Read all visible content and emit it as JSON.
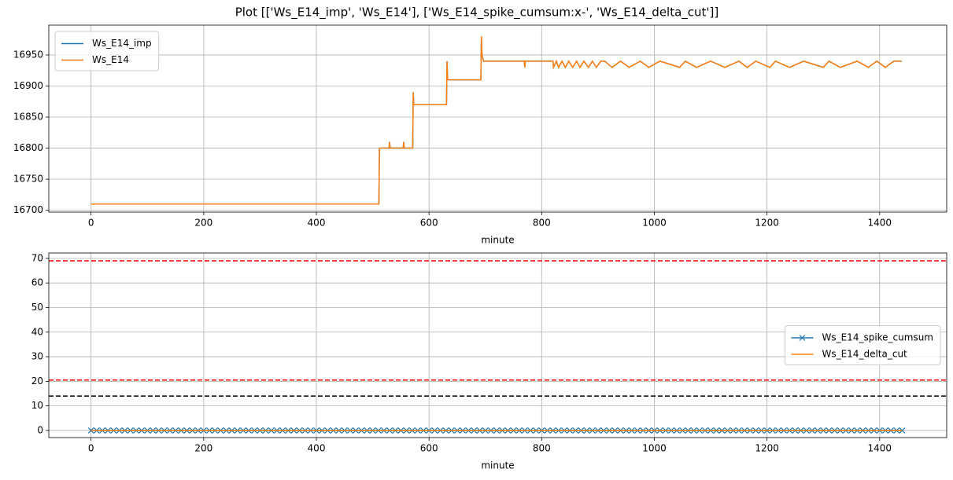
{
  "title": "Plot [['Ws_E14_imp', 'Ws_E14'], ['Ws_E14_spike_cumsum:x-', 'Ws_E14_delta_cut']]",
  "chart_data": [
    {
      "type": "line",
      "xlabel": "minute",
      "grid": true,
      "legend": "upper left",
      "xlim": [
        -75,
        1519
      ],
      "xticks": [
        0,
        200,
        400,
        600,
        800,
        1000,
        1200,
        1400
      ],
      "ylim": [
        16697,
        16998
      ],
      "yticks": [
        16700,
        16750,
        16800,
        16850,
        16900,
        16950
      ],
      "x": [
        0,
        511,
        512,
        529,
        530,
        531,
        554,
        555,
        556,
        571,
        572,
        573,
        631,
        632,
        633,
        692,
        693,
        694,
        697,
        769,
        770,
        771,
        820,
        821,
        826,
        830,
        836,
        842,
        848,
        855,
        862,
        868,
        875,
        883,
        890,
        897,
        905,
        912,
        925,
        940,
        955,
        975,
        990,
        1010,
        1045,
        1055,
        1075,
        1100,
        1125,
        1150,
        1165,
        1180,
        1205,
        1215,
        1240,
        1265,
        1300,
        1310,
        1330,
        1360,
        1380,
        1395,
        1410,
        1425,
        1439
      ],
      "series": [
        {
          "name": "Ws_E14_imp",
          "color": "#1f77b4",
          "values": [
            16710,
            16710,
            16800,
            16800,
            16810,
            16800,
            16800,
            16810,
            16800,
            16800,
            16890,
            16870,
            16870,
            16940,
            16910,
            16910,
            16980,
            16950,
            16940,
            16940,
            16930,
            16940,
            16940,
            16930,
            16940,
            16930,
            16940,
            16930,
            16940,
            16930,
            16940,
            16930,
            16940,
            16930,
            16940,
            16930,
            16940,
            16940,
            16930,
            16940,
            16930,
            16940,
            16930,
            16940,
            16930,
            16940,
            16930,
            16940,
            16930,
            16940,
            16930,
            16940,
            16930,
            16940,
            16930,
            16940,
            16930,
            16940,
            16930,
            16940,
            16930,
            16940,
            16930,
            16940,
            16940
          ]
        },
        {
          "name": "Ws_E14",
          "color": "#ff7f0e",
          "values": [
            16710,
            16710,
            16800,
            16800,
            16810,
            16800,
            16800,
            16810,
            16800,
            16800,
            16890,
            16870,
            16870,
            16940,
            16910,
            16910,
            16980,
            16950,
            16940,
            16940,
            16930,
            16940,
            16940,
            16930,
            16940,
            16930,
            16940,
            16930,
            16940,
            16930,
            16940,
            16930,
            16940,
            16930,
            16940,
            16930,
            16940,
            16940,
            16930,
            16940,
            16930,
            16940,
            16930,
            16940,
            16930,
            16940,
            16930,
            16940,
            16930,
            16940,
            16930,
            16940,
            16930,
            16940,
            16930,
            16940,
            16930,
            16940,
            16930,
            16940,
            16930,
            16940,
            16930,
            16940,
            16940
          ]
        }
      ]
    },
    {
      "type": "line",
      "xlabel": "minute",
      "grid": true,
      "legend": "center right",
      "xlim": [
        -75,
        1519
      ],
      "xticks": [
        0,
        200,
        400,
        600,
        800,
        1000,
        1200,
        1400
      ],
      "ylim": [
        -2.9,
        72.2
      ],
      "yticks": [
        0,
        10,
        20,
        30,
        40,
        50,
        60,
        70
      ],
      "hlines": [
        {
          "value": 69,
          "color": "red"
        },
        {
          "value": 20.5,
          "color": "red"
        },
        {
          "value": 14,
          "color": "black"
        }
      ],
      "series": [
        {
          "name": "Ws_E14_spike_cumsum",
          "color": "#1f77b4",
          "marker": "x",
          "x": [
            0,
            10,
            20,
            30,
            40,
            50,
            60,
            70,
            80,
            90,
            100,
            110,
            120,
            130,
            140,
            150,
            160,
            170,
            180,
            190,
            200,
            210,
            220,
            230,
            240,
            250,
            260,
            270,
            280,
            290,
            300,
            310,
            320,
            330,
            340,
            350,
            360,
            370,
            380,
            390,
            400,
            410,
            420,
            430,
            440,
            450,
            460,
            470,
            480,
            490,
            500,
            510,
            520,
            530,
            540,
            550,
            560,
            570,
            580,
            590,
            600,
            610,
            620,
            630,
            640,
            650,
            660,
            670,
            680,
            690,
            700,
            710,
            720,
            730,
            740,
            750,
            760,
            770,
            780,
            790,
            800,
            810,
            820,
            830,
            840,
            850,
            860,
            870,
            880,
            890,
            900,
            910,
            920,
            930,
            940,
            950,
            960,
            970,
            980,
            990,
            1000,
            1010,
            1020,
            1030,
            1040,
            1050,
            1060,
            1070,
            1080,
            1090,
            1100,
            1110,
            1120,
            1130,
            1140,
            1150,
            1160,
            1170,
            1180,
            1190,
            1200,
            1210,
            1220,
            1230,
            1240,
            1250,
            1260,
            1270,
            1280,
            1290,
            1300,
            1310,
            1320,
            1330,
            1340,
            1350,
            1360,
            1370,
            1380,
            1390,
            1400,
            1410,
            1420,
            1430,
            1440
          ],
          "values": [
            0,
            0,
            0,
            0,
            0,
            0,
            0,
            0,
            0,
            0,
            0,
            0,
            0,
            0,
            0,
            0,
            0,
            0,
            0,
            0,
            0,
            0,
            0,
            0,
            0,
            0,
            0,
            0,
            0,
            0,
            0,
            0,
            0,
            0,
            0,
            0,
            0,
            0,
            0,
            0,
            0,
            0,
            0,
            0,
            0,
            0,
            0,
            0,
            0,
            0,
            0,
            0,
            0,
            0,
            0,
            0,
            0,
            0,
            0,
            0,
            0,
            0,
            0,
            0,
            0,
            0,
            0,
            0,
            0,
            0,
            0,
            0,
            0,
            0,
            0,
            0,
            0,
            0,
            0,
            0,
            0,
            0,
            0,
            0,
            0,
            0,
            0,
            0,
            0,
            0,
            0,
            0,
            0,
            0,
            0,
            0,
            0,
            0,
            0,
            0,
            0,
            0,
            0,
            0,
            0,
            0,
            0,
            0,
            0,
            0,
            0,
            0,
            0,
            0,
            0,
            0,
            0,
            0,
            0,
            0,
            0,
            0,
            0,
            0,
            0,
            0,
            0,
            0,
            0,
            0,
            0,
            0,
            0,
            0,
            0,
            0,
            0,
            0,
            0,
            0,
            0,
            0,
            0,
            0,
            0
          ]
        },
        {
          "name": "Ws_E14_delta_cut",
          "color": "#ff7f0e",
          "x": [
            0,
            1440
          ],
          "values": [
            0,
            0
          ]
        }
      ]
    }
  ]
}
